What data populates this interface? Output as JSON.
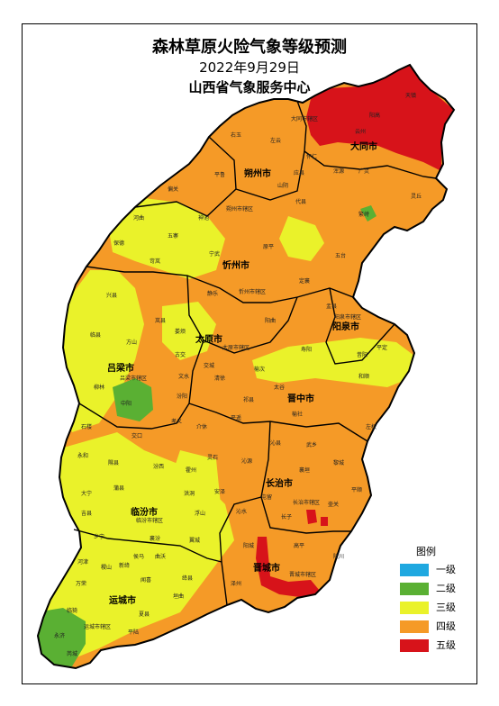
{
  "map": {
    "title": "森林草原火险气象等级预测",
    "date": "2022年9月29日",
    "agency": "山西省气象服务中心"
  },
  "colors": {
    "level1": "#1fa8e0",
    "level2": "#5ab033",
    "level3": "#eaf22a",
    "level4": "#f59a27",
    "level5": "#d7131a"
  },
  "legend": {
    "title": "图例",
    "items": [
      {
        "label": "一级",
        "color": "#1fa8e0"
      },
      {
        "label": "二级",
        "color": "#5ab033"
      },
      {
        "label": "三级",
        "color": "#eaf22a"
      },
      {
        "label": "四级",
        "color": "#f59a27"
      },
      {
        "label": "五级",
        "color": "#d7131a"
      }
    ]
  },
  "cities": [
    {
      "id": "datong",
      "label": "大同市"
    },
    {
      "id": "shuozhou",
      "label": "朔州市"
    },
    {
      "id": "xinzhou",
      "label": "忻州市"
    },
    {
      "id": "yangquan",
      "label": "阳泉市"
    },
    {
      "id": "taiyuan",
      "label": "太原市"
    },
    {
      "id": "lvliang",
      "label": "吕梁市"
    },
    {
      "id": "jinzhong",
      "label": "晋中市"
    },
    {
      "id": "changzhi",
      "label": "长治市"
    },
    {
      "id": "linfen",
      "label": "临汾市"
    },
    {
      "id": "jincheng",
      "label": "晋城市"
    },
    {
      "id": "yuncheng",
      "label": "运城市"
    }
  ],
  "counties": [
    {
      "id": "tianzhen",
      "label": "天镇"
    },
    {
      "id": "yanggao",
      "label": "阳高"
    },
    {
      "id": "datongxian",
      "label": "大同市辖区"
    },
    {
      "id": "yunzhou",
      "label": "云州"
    },
    {
      "id": "zuoyun",
      "label": "左云"
    },
    {
      "id": "youyu",
      "label": "右玉"
    },
    {
      "id": "huairen",
      "label": "怀仁"
    },
    {
      "id": "hunyuan",
      "label": "浑源"
    },
    {
      "id": "guangling",
      "label": "广灵"
    },
    {
      "id": "lingqiu",
      "label": "灵丘"
    },
    {
      "id": "yingxian",
      "label": "应县"
    },
    {
      "id": "shanyin",
      "label": "山阴"
    },
    {
      "id": "pinglu",
      "label": "平鲁"
    },
    {
      "id": "shuozhouxian",
      "label": "朔州市辖区"
    },
    {
      "id": "pianguan",
      "label": "偏关"
    },
    {
      "id": "hequ",
      "label": "河曲"
    },
    {
      "id": "shenchi",
      "label": "神池"
    },
    {
      "id": "wuzhai",
      "label": "五寨"
    },
    {
      "id": "kelan",
      "label": "岢岚"
    },
    {
      "id": "baode",
      "label": "保德"
    },
    {
      "id": "ningwu",
      "label": "宁武"
    },
    {
      "id": "daixian",
      "label": "代县"
    },
    {
      "id": "fanzhi",
      "label": "繁峙"
    },
    {
      "id": "wutai",
      "label": "五台"
    },
    {
      "id": "yuanping",
      "label": "原平"
    },
    {
      "id": "jingle",
      "label": "静乐"
    },
    {
      "id": "xinzhouxian",
      "label": "忻州市辖区"
    },
    {
      "id": "dingxiang",
      "label": "定襄"
    },
    {
      "id": "yuxian",
      "label": "盂县"
    },
    {
      "id": "yangquanxian",
      "label": "阳泉市辖区"
    },
    {
      "id": "pingding",
      "label": "平定"
    },
    {
      "id": "xingxian",
      "label": "兴县"
    },
    {
      "id": "linxian",
      "label": "临县"
    },
    {
      "id": "fangshan",
      "label": "方山"
    },
    {
      "id": "lanxian",
      "label": "岚县"
    },
    {
      "id": "loufan",
      "label": "娄烦"
    },
    {
      "id": "gujiao",
      "label": "古交"
    },
    {
      "id": "yangqu",
      "label": "阳曲"
    },
    {
      "id": "taiyuanxian",
      "label": "太原市辖区"
    },
    {
      "id": "qingxu",
      "label": "清徐"
    },
    {
      "id": "shouyang",
      "label": "寿阳"
    },
    {
      "id": "xiyang",
      "label": "昔阳"
    },
    {
      "id": "heshun",
      "label": "和顺"
    },
    {
      "id": "zuoquan",
      "label": "左权"
    },
    {
      "id": "yushe",
      "label": "榆社"
    },
    {
      "id": "taigu",
      "label": "太谷"
    },
    {
      "id": "yuci",
      "label": "榆次"
    },
    {
      "id": "qixian",
      "label": "祁县"
    },
    {
      "id": "pingyao",
      "label": "平遥"
    },
    {
      "id": "jiexiu",
      "label": "介休"
    },
    {
      "id": "lingshi",
      "label": "灵石"
    },
    {
      "id": "wenshui",
      "label": "文水"
    },
    {
      "id": "jiaocheng",
      "label": "交城"
    },
    {
      "id": "fenyang",
      "label": "汾阳"
    },
    {
      "id": "xiaoyi",
      "label": "孝义"
    },
    {
      "id": "lvliangxian",
      "label": "吕梁市辖区"
    },
    {
      "id": "liulin",
      "label": "柳林"
    },
    {
      "id": "zhongyang",
      "label": "中阳"
    },
    {
      "id": "shilou",
      "label": "石楼"
    },
    {
      "id": "jiaokou",
      "label": "交口"
    },
    {
      "id": "wuxiang",
      "label": "武乡"
    },
    {
      "id": "qinxian",
      "label": "沁县"
    },
    {
      "id": "qinyuan",
      "label": "沁源"
    },
    {
      "id": "xiangyuan",
      "label": "襄垣"
    },
    {
      "id": "licheng",
      "label": "黎城"
    },
    {
      "id": "changzhixian",
      "label": "长治市辖区"
    },
    {
      "id": "huguan",
      "label": "壶关"
    },
    {
      "id": "pingshun",
      "label": "平顺"
    },
    {
      "id": "zhangzi",
      "label": "长子"
    },
    {
      "id": "tunliu",
      "label": "屯留"
    },
    {
      "id": "yonghe",
      "label": "永和"
    },
    {
      "id": "xixian",
      "label": "隰县"
    },
    {
      "id": "puxian",
      "label": "蒲县"
    },
    {
      "id": "fenxi",
      "label": "汾西"
    },
    {
      "id": "huozhou",
      "label": "霍州"
    },
    {
      "id": "hongtong",
      "label": "洪洞"
    },
    {
      "id": "daning",
      "label": "大宁"
    },
    {
      "id": "jixian",
      "label": "吉县"
    },
    {
      "id": "linfenxian",
      "label": "临汾市辖区"
    },
    {
      "id": "fushan",
      "label": "浮山"
    },
    {
      "id": "anze",
      "label": "安泽"
    },
    {
      "id": "xiangning",
      "label": "乡宁"
    },
    {
      "id": "xiangfen",
      "label": "襄汾"
    },
    {
      "id": "yicheng",
      "label": "翼城"
    },
    {
      "id": "quwo",
      "label": "曲沃"
    },
    {
      "id": "houma",
      "label": "侯马"
    },
    {
      "id": "qinshui",
      "label": "沁水"
    },
    {
      "id": "yangcheng",
      "label": "阳城"
    },
    {
      "id": "jinchengxian",
      "label": "晋城市辖区"
    },
    {
      "id": "gaoping",
      "label": "高平"
    },
    {
      "id": "lingchuan",
      "label": "陵川"
    },
    {
      "id": "zezhou",
      "label": "泽州"
    },
    {
      "id": "hejin",
      "label": "河津"
    },
    {
      "id": "wanrong",
      "label": "万荣"
    },
    {
      "id": "jishan",
      "label": "稷山"
    },
    {
      "id": "xinjiang",
      "label": "新绛"
    },
    {
      "id": "jiangxian",
      "label": "绛县"
    },
    {
      "id": "wenxi",
      "label": "闻喜"
    },
    {
      "id": "linyi",
      "label": "临猗"
    },
    {
      "id": "yunchengxian",
      "label": "运城市辖区"
    },
    {
      "id": "xiaxian",
      "label": "夏县"
    },
    {
      "id": "yuanqu",
      "label": "垣曲"
    },
    {
      "id": "yongji",
      "label": "永济"
    },
    {
      "id": "ruicheng",
      "label": "芮城"
    },
    {
      "id": "pinglux",
      "label": "平陆"
    }
  ]
}
